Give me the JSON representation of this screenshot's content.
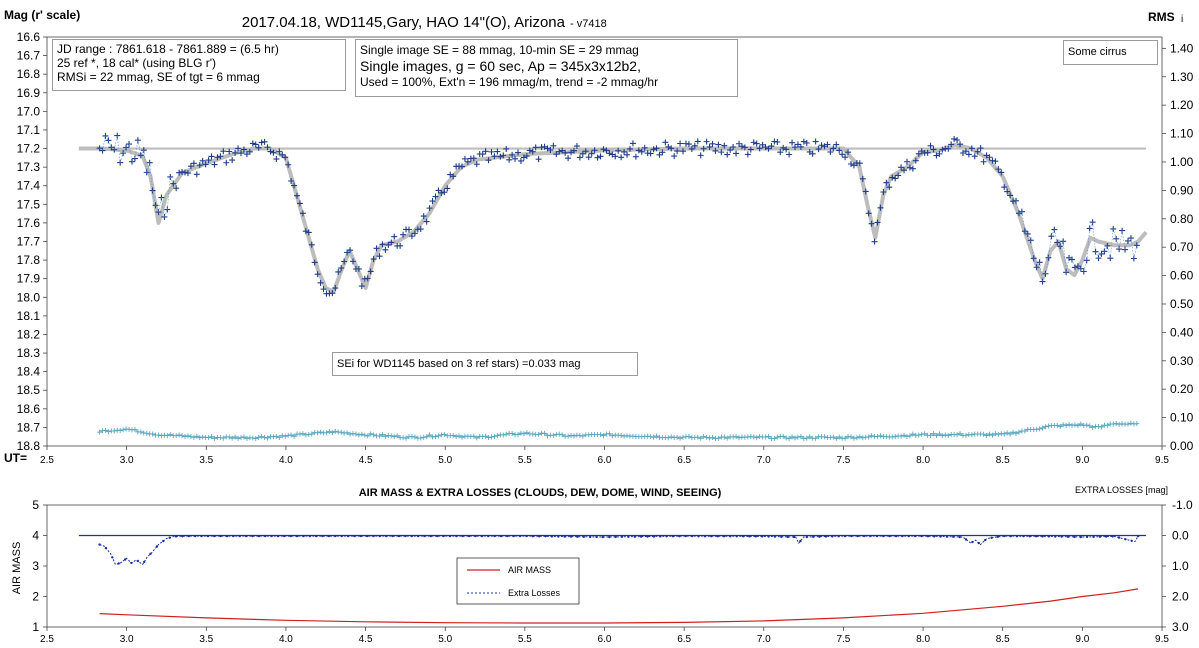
{
  "top_panel": {
    "title": "2017.04.18,  WD1145,Gary, HAO  14\"(O), Arizona",
    "version": "- v7418",
    "ylabel_left": "Mag (r' scale)",
    "ylabel_right": "RMS",
    "ylabel_right_sub": "i",
    "x_prefix": "UT=",
    "info_box_1": [
      "JD range  : 7861.618 - 7861.889  = (6.5 hr)",
      "25 ref *, 18 cal* (using BLG r')",
      "RMSi = 22 mmag, SE of tgt = 6 mmag"
    ],
    "info_box_2": [
      "Single image SE = 88 mmag, 10-min SE = 29 mmag",
      "Single images, g = 60 sec, Ap = 345x3x12b2,",
      "Used = 100%, Ext'n = 196 mmag/m, trend = -2 mmag/hr"
    ],
    "note_box": "Some cirrus",
    "sei_box": "SEi for WD1145 based on 3 ref stars) =0.033 mag",
    "colors": {
      "points": "#1f3d8a",
      "smooth": "#bdbdbd",
      "rms": "#5aa8c0"
    }
  },
  "bottom_panel": {
    "title": "AIR MASS & EXTRA LOSSES (CLOUDS, DEW, DOME, WIND, SEEING)",
    "ylabel_left": "AIR MASS",
    "ylabel_right": "EXTRA LOSSES [mag]",
    "legend_airmass": "AIR MASS",
    "legend_losses": "Extra Losses",
    "colors": {
      "airmass": "#d02020",
      "losses": "#1a2fa0"
    }
  },
  "chart_data": [
    {
      "type": "scatter",
      "title": "2017.04.18,  WD1145,Gary, HAO  14\"(O), Arizona",
      "xlabel": "UT=",
      "ylabel": "Mag (r' scale)",
      "xlim": [
        2.5,
        9.5
      ],
      "ylim": [
        16.6,
        18.8
      ],
      "y_inverted": true,
      "xticks": [
        "2.5",
        "3.0",
        "3.5",
        "4.0",
        "4.5",
        "5.0",
        "5.5",
        "6.0",
        "6.5",
        "7.0",
        "7.5",
        "8.0",
        "8.5",
        "9.0",
        "9.5"
      ],
      "yticks": [
        "16.6",
        "16.7",
        "16.8",
        "16.9",
        "17.0",
        "17.1",
        "17.2",
        "17.3",
        "17.4",
        "17.5",
        "17.6",
        "17.7",
        "17.8",
        "17.9",
        "18.0",
        "18.1",
        "18.2",
        "18.3",
        "18.4",
        "18.5",
        "18.6",
        "18.7",
        "18.8"
      ],
      "y2lim": [
        0.0,
        1.44
      ],
      "y2ticks": [
        "0.00",
        "0.10",
        "0.20",
        "0.30",
        "0.40",
        "0.50",
        "0.60",
        "0.70",
        "0.80",
        "0.90",
        "1.00",
        "1.10",
        "1.20",
        "1.30",
        "1.40"
      ],
      "baseline_mag": 17.2,
      "smooth_curve": {
        "x": [
          2.7,
          2.85,
          3.0,
          3.1,
          3.15,
          3.2,
          3.25,
          3.35,
          3.5,
          3.6,
          3.7,
          3.8,
          3.9,
          4.0,
          4.05,
          4.1,
          4.15,
          4.2,
          4.25,
          4.3,
          4.35,
          4.4,
          4.45,
          4.5,
          4.55,
          4.6,
          4.7,
          4.8,
          4.9,
          5.0,
          5.1,
          5.2,
          5.3,
          5.5,
          6.0,
          6.5,
          7.0,
          7.5,
          7.6,
          7.65,
          7.7,
          7.75,
          7.8,
          7.9,
          8.0,
          8.1,
          8.2,
          8.3,
          8.4,
          8.5,
          8.6,
          8.7,
          8.75,
          8.8,
          8.85,
          8.9,
          8.95,
          9.0,
          9.05,
          9.1,
          9.2,
          9.3,
          9.35,
          9.4
        ],
        "y": [
          17.2,
          17.2,
          17.21,
          17.24,
          17.35,
          17.6,
          17.45,
          17.33,
          17.28,
          17.25,
          17.22,
          17.2,
          17.2,
          17.25,
          17.4,
          17.55,
          17.7,
          17.85,
          17.95,
          17.97,
          17.85,
          17.75,
          17.85,
          17.95,
          17.8,
          17.72,
          17.7,
          17.65,
          17.55,
          17.4,
          17.3,
          17.26,
          17.25,
          17.23,
          17.21,
          17.2,
          17.2,
          17.2,
          17.3,
          17.5,
          17.68,
          17.45,
          17.35,
          17.3,
          17.22,
          17.21,
          17.18,
          17.2,
          17.25,
          17.35,
          17.55,
          17.8,
          17.9,
          17.75,
          17.7,
          17.85,
          17.88,
          17.8,
          17.68,
          17.7,
          17.72,
          17.72,
          17.7,
          17.65
        ]
      },
      "reference_level": 17.2,
      "rms_series": {
        "x": [
          2.8,
          3.0,
          3.2,
          3.5,
          3.8,
          4.0,
          4.2,
          4.3,
          4.5,
          4.8,
          5.0,
          5.2,
          5.5,
          5.8,
          6.0,
          6.5,
          7.0,
          7.5,
          7.8,
          8.0,
          8.3,
          8.5,
          8.7,
          8.8,
          9.0,
          9.1,
          9.2,
          9.35
        ],
        "y": [
          0.05,
          0.06,
          0.04,
          0.03,
          0.03,
          0.035,
          0.045,
          0.05,
          0.04,
          0.03,
          0.04,
          0.03,
          0.045,
          0.035,
          0.04,
          0.03,
          0.03,
          0.03,
          0.035,
          0.04,
          0.04,
          0.04,
          0.06,
          0.07,
          0.075,
          0.065,
          0.08,
          0.075
        ]
      }
    },
    {
      "type": "line",
      "title": "AIR MASS & EXTRA LOSSES (CLOUDS, DEW, DOME, WIND, SEEING)",
      "xlim": [
        2.5,
        9.5
      ],
      "ylim": [
        1,
        5
      ],
      "y2lim": [
        3.0,
        -1.0
      ],
      "xticks": [
        "2.5",
        "3.0",
        "3.5",
        "4.0",
        "4.5",
        "5.0",
        "5.5",
        "6.0",
        "6.5",
        "7.0",
        "7.5",
        "8.0",
        "8.5",
        "9.0",
        "9.5"
      ],
      "yticks": [
        "1",
        "2",
        "3",
        "4",
        "5"
      ],
      "y2ticks": [
        "3.0",
        "2.0",
        "1.0",
        "0.0",
        "-1.0"
      ],
      "series": [
        {
          "name": "AIR MASS",
          "x": [
            2.83,
            3.0,
            3.5,
            4.0,
            4.5,
            5.0,
            5.5,
            6.0,
            6.5,
            7.0,
            7.5,
            8.0,
            8.5,
            8.8,
            9.0,
            9.2,
            9.35
          ],
          "y": [
            1.44,
            1.4,
            1.3,
            1.22,
            1.17,
            1.14,
            1.13,
            1.13,
            1.15,
            1.2,
            1.3,
            1.45,
            1.68,
            1.85,
            2.0,
            2.12,
            2.25
          ]
        },
        {
          "name": "Extra Losses",
          "x": [
            2.83,
            2.86,
            2.9,
            2.93,
            2.96,
            3.0,
            3.03,
            3.06,
            3.1,
            3.13,
            3.16,
            3.2,
            3.25,
            3.3,
            3.4,
            3.6,
            4.0,
            4.5,
            5.0,
            5.5,
            6.0,
            6.5,
            7.0,
            7.2,
            7.22,
            7.25,
            7.5,
            8.0,
            8.25,
            8.3,
            8.33,
            8.36,
            8.4,
            8.5,
            8.8,
            9.0,
            9.2,
            9.33,
            9.35
          ],
          "y": [
            0.3,
            0.35,
            0.6,
            0.95,
            0.9,
            0.75,
            0.9,
            0.8,
            0.95,
            0.7,
            0.55,
            0.3,
            0.1,
            0.03,
            0.02,
            0.02,
            0.02,
            0.02,
            0.02,
            0.02,
            0.05,
            0.02,
            0.03,
            0.05,
            0.25,
            0.05,
            0.02,
            0.02,
            0.05,
            0.25,
            0.15,
            0.3,
            0.1,
            0.02,
            0.03,
            0.05,
            0.03,
            0.2,
            0.02
          ]
        }
      ]
    }
  ]
}
